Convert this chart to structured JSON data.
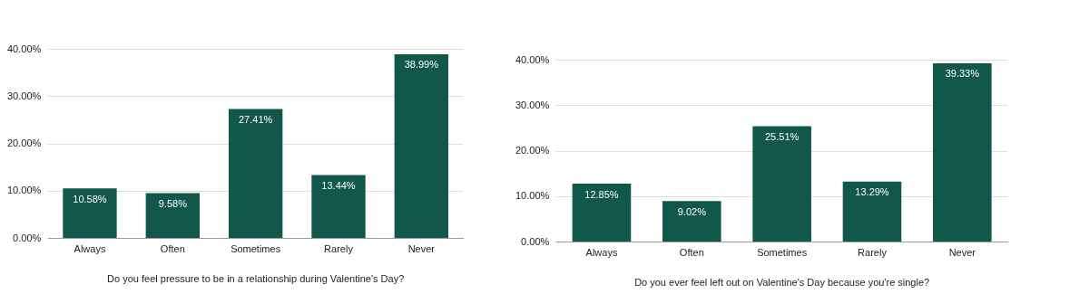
{
  "chart_data": [
    {
      "type": "bar",
      "xlabel": "Do you feel pressure to be in a relationship during Valentine's Day?",
      "categories": [
        "Always",
        "Often",
        "Sometimes",
        "Rarely",
        "Never"
      ],
      "values": [
        10.58,
        9.58,
        27.41,
        13.44,
        38.99
      ],
      "value_labels": [
        "10.58%",
        "9.58%",
        "27.41%",
        "13.44%",
        "38.99%"
      ],
      "color": "#11574a",
      "ylim": [
        0,
        40
      ],
      "yticks": [
        {
          "value": 0,
          "label": "0.00%"
        },
        {
          "value": 10,
          "label": "10.00%"
        },
        {
          "value": 20,
          "label": "20.00%"
        },
        {
          "value": 30,
          "label": "30.00%"
        },
        {
          "value": 40,
          "label": "40.00%"
        }
      ],
      "grid": "y",
      "legend": false
    },
    {
      "type": "bar",
      "xlabel": "Do you ever feel left out on Valentine's Day because you're single?",
      "categories": [
        "Always",
        "Often",
        "Sometimes",
        "Rarely",
        "Never"
      ],
      "values": [
        12.85,
        9.02,
        25.51,
        13.29,
        39.33
      ],
      "value_labels": [
        "12.85%",
        "9.02%",
        "25.51%",
        "13.29%",
        "39.33%"
      ],
      "color": "#11574a",
      "ylim": [
        0,
        40
      ],
      "yticks": [
        {
          "value": 0,
          "label": "0.00%"
        },
        {
          "value": 10,
          "label": "10.00%"
        },
        {
          "value": 20,
          "label": "20.00%"
        },
        {
          "value": 30,
          "label": "30.00%"
        },
        {
          "value": 40,
          "label": "40.00%"
        }
      ],
      "grid": "y",
      "legend": false
    }
  ]
}
